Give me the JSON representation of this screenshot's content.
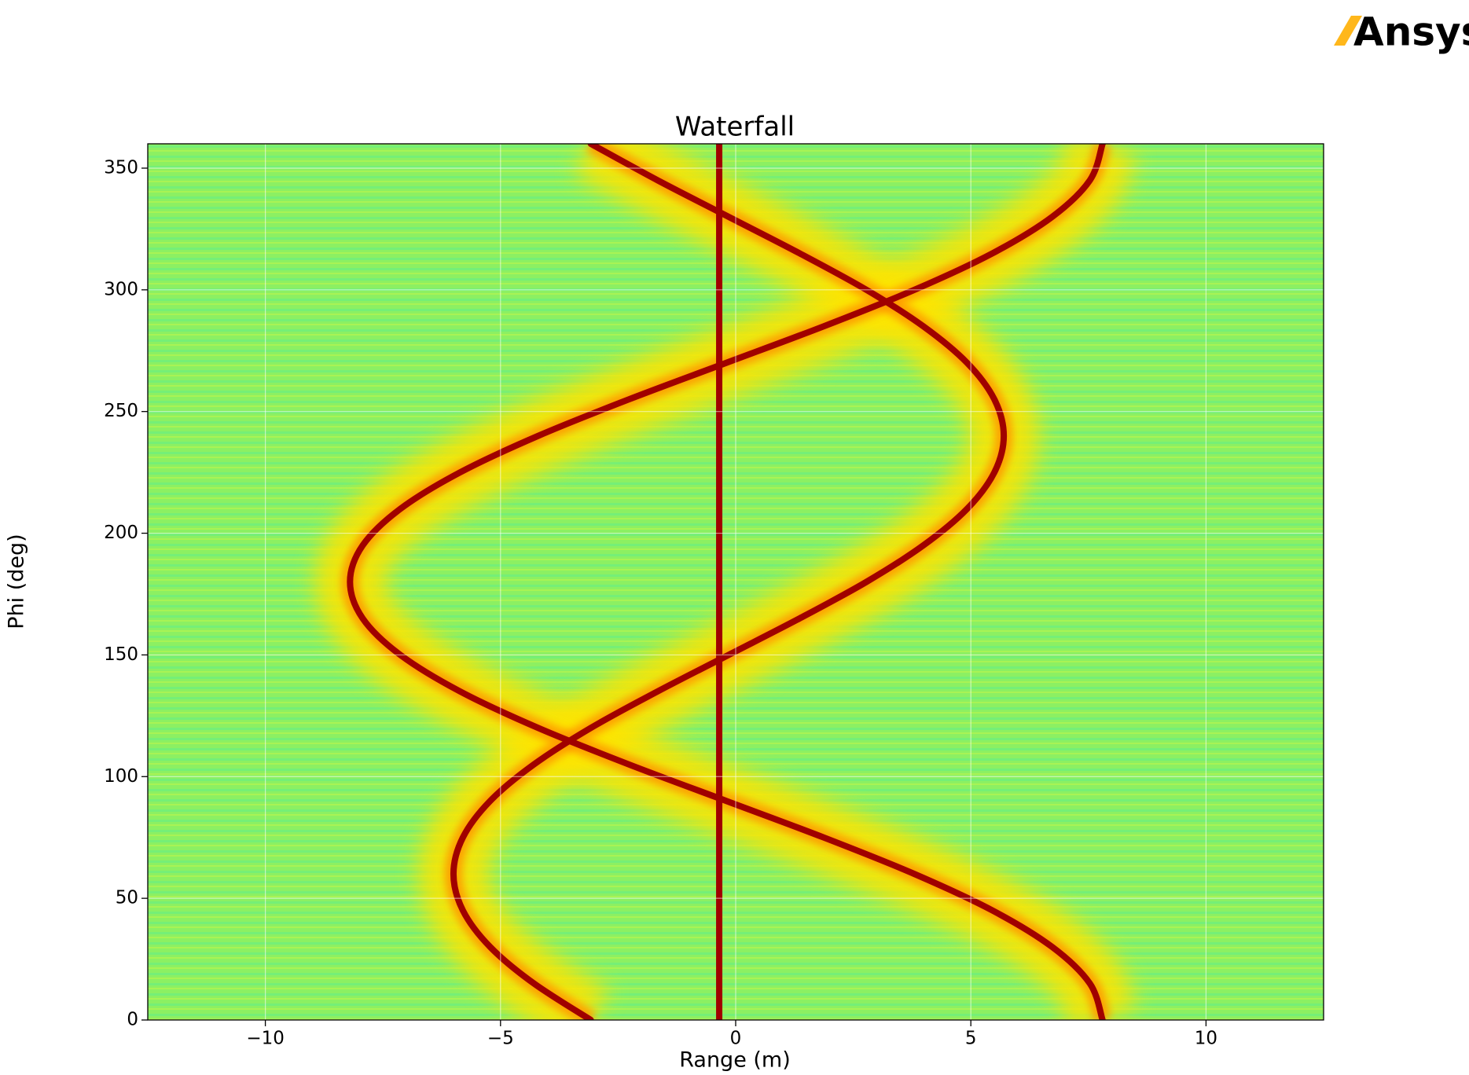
{
  "brand": "Ansys",
  "chart_data": {
    "type": "line",
    "title": "Waterfall",
    "x_label": "Range (m)",
    "y_label": "Phi (deg)",
    "xlim": [
      -12.5,
      12.5
    ],
    "xticks": [
      {
        "value": -10,
        "label": "−10"
      },
      {
        "value": -5,
        "label": "−5"
      },
      0,
      5,
      10
    ],
    "ylim": [
      0,
      360
    ],
    "yticks": [
      0,
      50,
      100,
      150,
      200,
      250,
      300,
      350
    ],
    "grid": true,
    "series": [
      {
        "color": "#a00000",
        "x": [
          -0.35,
          -0.35
        ],
        "y": [
          0,
          360
        ]
      },
      {
        "color": "#a00000",
        "x": [
          -3.08,
          -4.29,
          -5.22,
          -5.8,
          -6.0,
          -5.8,
          -5.22,
          -4.29,
          -3.08,
          -1.66,
          -0.15,
          1.36,
          2.78,
          3.99,
          4.92,
          5.5,
          5.7,
          5.5,
          4.92,
          3.99,
          2.78,
          1.36,
          -0.15,
          -1.66,
          -3.08
        ],
        "y": [
          0,
          15,
          30,
          45,
          60,
          75,
          90,
          105,
          120,
          135,
          150,
          165,
          180,
          195,
          210,
          225,
          240,
          255,
          270,
          285,
          300,
          315,
          330,
          345,
          360
        ]
      },
      {
        "color": "#a00000",
        "x": [
          7.8,
          7.53,
          6.73,
          5.46,
          3.8,
          1.87,
          -0.2,
          -2.27,
          -4.2,
          -5.86,
          -7.13,
          -7.93,
          -8.2,
          -7.93,
          -7.13,
          -5.86,
          -4.2,
          -2.27,
          -0.2,
          1.87,
          3.8,
          5.46,
          6.73,
          7.53,
          7.8
        ],
        "y": [
          0,
          15,
          30,
          45,
          60,
          75,
          90,
          105,
          120,
          135,
          150,
          165,
          180,
          195,
          210,
          225,
          240,
          255,
          270,
          285,
          300,
          315,
          330,
          345,
          360
        ]
      }
    ]
  }
}
